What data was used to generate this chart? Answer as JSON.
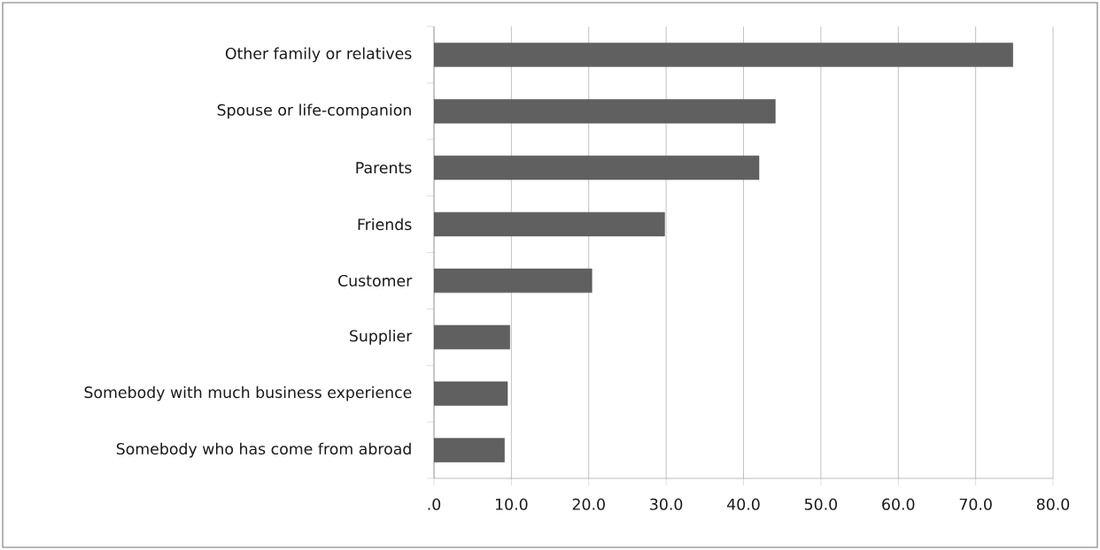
{
  "chart_data": {
    "type": "bar",
    "orientation": "horizontal",
    "categories": [
      "Other family or relatives",
      "Spouse or life-companion",
      "Parents",
      "Friends",
      "Customer",
      "Supplier",
      "Somebody with much business experience",
      "Somebody who has come from abroad"
    ],
    "values": [
      74.8,
      44.1,
      42.0,
      29.8,
      20.4,
      9.8,
      9.5,
      9.1
    ],
    "color": "#606060",
    "xlim": [
      0,
      80
    ],
    "xticks": [
      {
        "value": 0,
        "label": ".0"
      },
      {
        "value": 10,
        "label": "10.0"
      },
      {
        "value": 20,
        "label": "20.0"
      },
      {
        "value": 30,
        "label": "30.0"
      },
      {
        "value": 40,
        "label": "40.0"
      },
      {
        "value": 50,
        "label": "50.0"
      },
      {
        "value": 60,
        "label": "60.0"
      },
      {
        "value": 70,
        "label": "70.0"
      },
      {
        "value": 80,
        "label": "80.0"
      }
    ],
    "grid": "x"
  }
}
